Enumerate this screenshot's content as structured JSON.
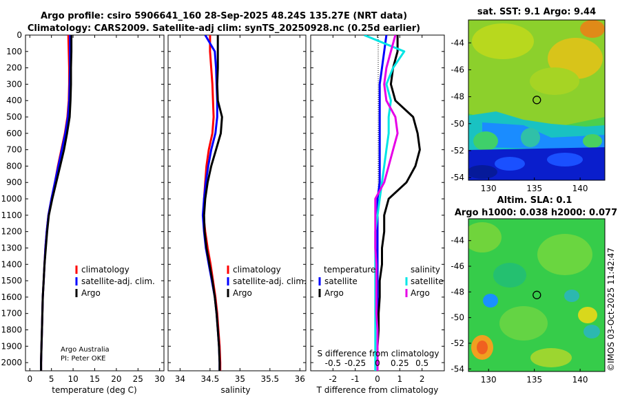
{
  "figure": {
    "title_line1": "Argo profile: csiro 5906641_160 28-Sep-2025 48.24S 135.27E (NRT data)",
    "title_line2": "Climatology: CARS2009. Satellite-adj clim: synTS_20250928.nc (0.25d earlier)",
    "credit_line1": "Argo Australia",
    "credit_line2": "PI: Peter OKE",
    "copyright": "©IMOS 03-Oct-2025 11:42:47"
  },
  "colors": {
    "climatology": "#ff0000",
    "satellite": "#0000ff",
    "argo": "#000000",
    "salinity_satellite": "#00e5e5",
    "salinity_argo": "#e600e6"
  },
  "chart_data": [
    {
      "id": "temperature",
      "type": "line",
      "xlabel": "temperature (deg C)",
      "ylabel": "",
      "xlim": [
        -1,
        31
      ],
      "ylim": [
        2050,
        0
      ],
      "xticks": [
        0,
        5,
        10,
        15,
        20,
        25,
        30
      ],
      "yticks": [
        0,
        100,
        200,
        300,
        400,
        500,
        600,
        700,
        800,
        900,
        1000,
        1100,
        1200,
        1300,
        1400,
        1500,
        1600,
        1700,
        1800,
        1900,
        2000
      ],
      "legend": [
        "climatology",
        "satellite-adj. clim.",
        "Argo"
      ],
      "depth": [
        0,
        100,
        200,
        300,
        400,
        500,
        600,
        700,
        800,
        900,
        1000,
        1100,
        1200,
        1300,
        1400,
        1500,
        1600,
        1700,
        1800,
        1900,
        2000,
        2050
      ],
      "series": [
        {
          "name": "climatology",
          "color_key": "climatology",
          "values": [
            8.9,
            9.0,
            9.1,
            9.1,
            9.0,
            8.7,
            8.1,
            7.3,
            6.5,
            5.8,
            5.0,
            4.3,
            3.9,
            3.6,
            3.4,
            3.2,
            3.0,
            2.9,
            2.8,
            2.7,
            2.6,
            2.6
          ]
        },
        {
          "name": "satellite-adj. clim.",
          "color_key": "satellite",
          "values": [
            9.3,
            9.3,
            9.3,
            9.2,
            9.1,
            8.8,
            8.2,
            7.4,
            6.6,
            5.8,
            5.0,
            4.3,
            3.9,
            3.6,
            3.4,
            3.2,
            3.0,
            2.9,
            2.8,
            2.7,
            2.6,
            2.6
          ]
        },
        {
          "name": "Argo",
          "color_key": "argo",
          "values": [
            9.6,
            9.6,
            9.5,
            9.5,
            9.4,
            9.2,
            8.6,
            7.9,
            7.0,
            6.1,
            5.2,
            4.4,
            4.0,
            3.7,
            3.4,
            3.2,
            3.0,
            2.9,
            2.8,
            2.7,
            2.6,
            2.6
          ]
        }
      ]
    },
    {
      "id": "salinity",
      "type": "line",
      "xlabel": "salinity",
      "xlim": [
        33.8,
        36.1
      ],
      "ylim": [
        2050,
        0
      ],
      "xticks": [
        34,
        34.5,
        35,
        35.5,
        36
      ],
      "legend": [
        "climatology",
        "satellite-adj. clim.",
        "Argo"
      ],
      "depth": [
        0,
        100,
        200,
        300,
        400,
        500,
        600,
        700,
        800,
        900,
        1000,
        1100,
        1200,
        1300,
        1400,
        1500,
        1600,
        1700,
        1800,
        1900,
        2000,
        2050
      ],
      "series": [
        {
          "name": "climatology",
          "color_key": "climatology",
          "values": [
            34.5,
            34.5,
            34.52,
            34.54,
            34.55,
            34.56,
            34.54,
            34.48,
            34.44,
            34.42,
            34.4,
            34.39,
            34.42,
            34.46,
            34.51,
            34.55,
            34.59,
            34.62,
            34.64,
            34.66,
            34.67,
            34.67
          ]
        },
        {
          "name": "satellite-adj. clim.",
          "color_key": "satellite",
          "values": [
            34.42,
            34.58,
            34.6,
            34.61,
            34.62,
            34.62,
            34.59,
            34.52,
            34.47,
            34.43,
            34.4,
            34.38,
            34.4,
            34.43,
            34.48,
            34.53,
            34.58,
            34.61,
            34.63,
            34.65,
            34.66,
            34.66
          ]
        },
        {
          "name": "Argo",
          "color_key": "argo",
          "values": [
            34.63,
            34.63,
            34.63,
            34.62,
            34.63,
            34.7,
            34.68,
            34.6,
            34.52,
            34.46,
            34.42,
            34.4,
            34.41,
            34.44,
            34.49,
            34.54,
            34.58,
            34.61,
            34.63,
            34.65,
            34.66,
            34.66
          ]
        }
      ]
    },
    {
      "id": "difference",
      "type": "line",
      "xlabel": "T difference from climatology",
      "xlabel_top": "S difference from climatology",
      "xlim": [
        -3,
        3
      ],
      "ylim": [
        2050,
        0
      ],
      "xticks": [
        -2,
        -1,
        0,
        1,
        2
      ],
      "sticks_labels": [
        "-0.5",
        "-0.25",
        "0",
        "0.25",
        "0.5"
      ],
      "sticks_values": [
        -2,
        -1,
        0,
        1,
        2
      ],
      "legend_temperature": {
        "title": "temperature",
        "items": [
          "satellite",
          "Argo"
        ]
      },
      "legend_salinity": {
        "title": "salinity",
        "items": [
          "satellite",
          "Argo"
        ]
      },
      "depth": [
        0,
        100,
        200,
        300,
        400,
        500,
        600,
        700,
        800,
        900,
        1000,
        1100,
        1200,
        1300,
        1400,
        1500,
        1600,
        1700,
        1800,
        1900,
        2000,
        2050
      ],
      "series": [
        {
          "name": "T satellite",
          "color_key": "satellite",
          "values": [
            0.4,
            0.3,
            0.2,
            0.1,
            0.1,
            0.1,
            0.1,
            0.1,
            0.1,
            0.1,
            0.0,
            0.0,
            0.0,
            0.0,
            0.0,
            0.0,
            0.0,
            0.0,
            0.0,
            0.0,
            0.0,
            0.0
          ]
        },
        {
          "name": "T Argo",
          "color_key": "argo",
          "values": [
            0.9,
            0.9,
            0.7,
            0.6,
            0.8,
            1.6,
            1.8,
            1.9,
            1.7,
            1.3,
            0.5,
            0.3,
            0.3,
            0.2,
            0.2,
            0.1,
            0.1,
            0.05,
            0.05,
            0.0,
            0.0,
            0.0
          ]
        },
        {
          "name": "S satellite",
          "color_key": "salinity_satellite",
          "values": [
            -0.6,
            1.2,
            0.7,
            0.4,
            0.6,
            0.5,
            0.5,
            0.4,
            0.3,
            0.2,
            0.1,
            0.0,
            -0.1,
            -0.1,
            -0.1,
            -0.1,
            -0.1,
            -0.1,
            -0.1,
            -0.1,
            -0.1,
            -0.1
          ]
        },
        {
          "name": "S Argo",
          "color_key": "salinity_argo",
          "values": [
            0.8,
            0.6,
            0.4,
            0.3,
            0.4,
            0.8,
            0.9,
            0.7,
            0.5,
            0.3,
            -0.1,
            -0.1,
            -0.1,
            -0.1,
            -0.05,
            -0.05,
            -0.05,
            -0.05,
            0.0,
            0.0,
            0.0,
            0.0
          ]
        }
      ]
    },
    {
      "id": "sst_map",
      "type": "heatmap",
      "title": "sat. SST: 9.1 Argo: 9.44",
      "xticks": [
        130,
        135,
        140
      ],
      "yticks": [
        -44,
        -46,
        -48,
        -50,
        -52,
        -54
      ],
      "xlim": [
        127.8,
        142.7
      ],
      "ylim": [
        -54.2,
        -42.3
      ],
      "marker": {
        "lon": 135.27,
        "lat": -48.24
      }
    },
    {
      "id": "sla_map",
      "type": "heatmap",
      "title_line1": "Altim. SLA: 0.1",
      "title_line2": "Argo h1000: 0.038 h2000: 0.077",
      "xticks": [
        130,
        135,
        140
      ],
      "yticks": [
        -44,
        -46,
        -48,
        -50,
        -52,
        -54
      ],
      "xlim": [
        127.8,
        142.7
      ],
      "ylim": [
        -54.2,
        -42.3
      ],
      "marker": {
        "lon": 135.27,
        "lat": -48.24
      }
    }
  ]
}
